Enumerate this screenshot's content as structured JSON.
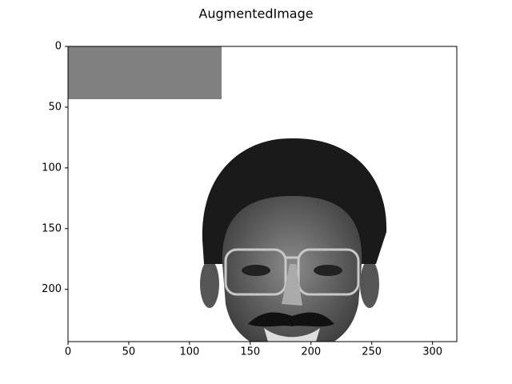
{
  "chart_data": {
    "type": "image",
    "title": "AugmentedImage",
    "xlim": [
      0,
      320
    ],
    "ylim": [
      243,
      0
    ],
    "xticks": [
      0,
      50,
      100,
      150,
      200,
      250,
      300
    ],
    "yticks": [
      0,
      50,
      100,
      150,
      200
    ]
  }
}
